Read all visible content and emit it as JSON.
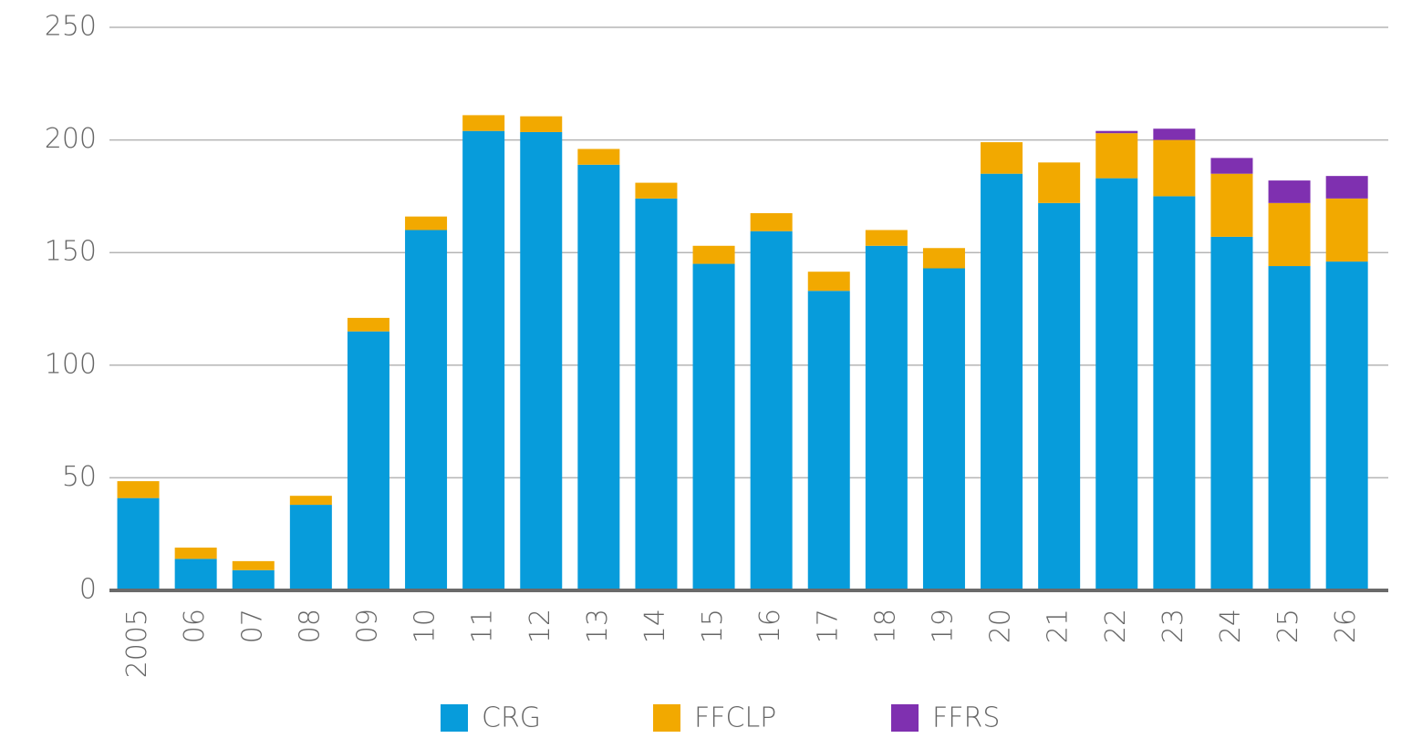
{
  "chart_data": {
    "type": "stacked_bar",
    "categories": [
      "2005",
      "06",
      "07",
      "08",
      "09",
      "10",
      "11",
      "12",
      "13",
      "14",
      "15",
      "16",
      "17",
      "18",
      "19",
      "20",
      "21",
      "22",
      "23",
      "24",
      "25",
      "26"
    ],
    "series": [
      {
        "name": "CRG",
        "color": "#079cdb",
        "values": [
          41,
          14,
          9,
          38,
          115,
          160,
          204,
          203.5,
          189,
          174,
          145,
          159.5,
          133,
          153,
          143,
          185,
          172,
          183,
          175,
          157,
          144,
          146
        ]
      },
      {
        "name": "FFCLP",
        "color": "#f2a900",
        "values": [
          7.5,
          5,
          4,
          4,
          6,
          6,
          7,
          7,
          7,
          7,
          8,
          8,
          8.5,
          7,
          9,
          14,
          18,
          20,
          25,
          28,
          28,
          28
        ]
      },
      {
        "name": "FFRS",
        "color": "#7f30b0",
        "values": [
          null,
          null,
          null,
          null,
          null,
          null,
          null,
          null,
          null,
          null,
          null,
          null,
          null,
          null,
          null,
          null,
          null,
          1,
          5,
          7,
          10,
          10
        ]
      }
    ],
    "ylim": [
      0,
      250
    ],
    "yticks": [
      0,
      50,
      100,
      150,
      200,
      250
    ],
    "grid": true
  }
}
